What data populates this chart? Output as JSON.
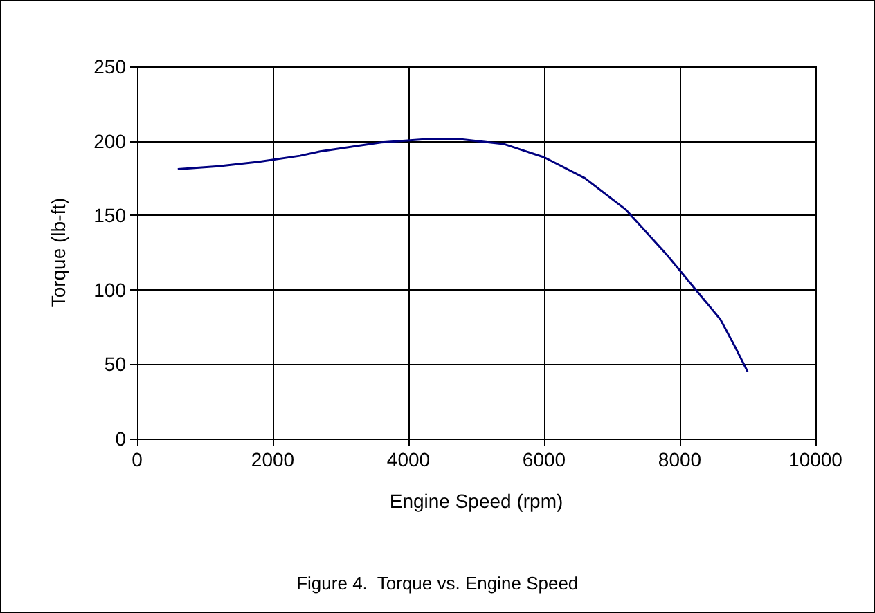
{
  "chart_data": {
    "type": "line",
    "xlabel": "Engine Speed (rpm)",
    "ylabel": "Torque (lb-ft)",
    "annotations": [
      "Figure 4.  Torque vs. Engine Speed"
    ],
    "x": [
      600,
      1200,
      1800,
      2400,
      2700,
      3600,
      4200,
      4800,
      5400,
      6000,
      6600,
      7200,
      7800,
      8000,
      8400,
      8600,
      8800,
      9000
    ],
    "series": [
      {
        "color": "#000080",
        "values": [
          181,
          183,
          186,
          190,
          193,
          199,
          201,
          201,
          198,
          189,
          175,
          154,
          124,
          113,
          91,
          80,
          63,
          45
        ]
      }
    ],
    "xlim": [
      0,
      10000
    ],
    "xticks": [
      0,
      2000,
      4000,
      6000,
      8000,
      10000
    ],
    "ylim": [
      0,
      250
    ],
    "yticks": [
      0,
      50,
      100,
      150,
      200,
      250
    ],
    "grid": true,
    "marker": "none",
    "line_style": "solid"
  }
}
